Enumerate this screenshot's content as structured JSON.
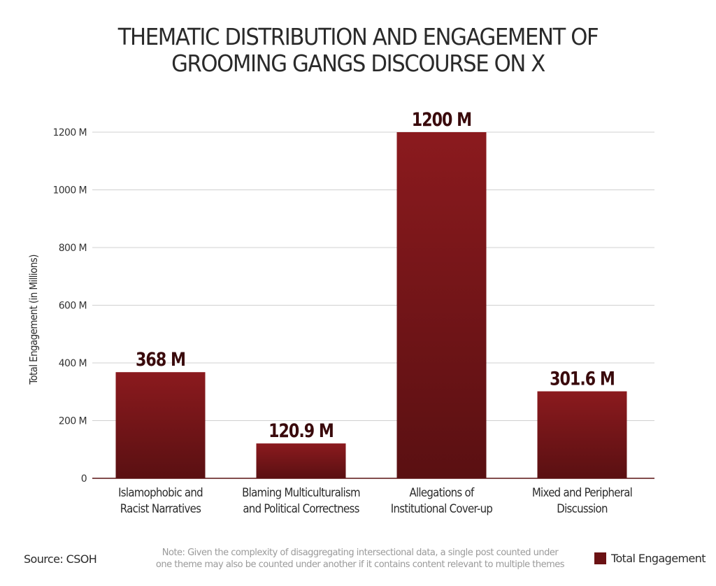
{
  "title_line1": "THEMATIC DISTRIBUTION AND ENGAGEMENT OF",
  "title_line2": "GROOMING GANGS DISCOURSE ON X",
  "source": "Source: CSOH",
  "note_line1": "Note: Given the complexity of disaggregating intersectional data, a single post counted under",
  "note_line2": "one theme may also be counted under another if it contains content relevant to multiple themes",
  "legend_label": "Total Engagement",
  "colors": {
    "bar_top": "#8b1a1e",
    "bar_bottom": "#5a1012",
    "legend": "#6b1214",
    "value_label": "#3a0a0c",
    "grid": "#d0d0d0",
    "axis": "#5a1012"
  },
  "chart_data": {
    "type": "bar",
    "title": "THEMATIC DISTRIBUTION AND ENGAGEMENT OF GROOMING GANGS DISCOURSE ON X",
    "ylabel": "Total Engagement (in Millions)",
    "xlabel": "",
    "ylim": [
      0,
      1200
    ],
    "yticks": [
      0,
      200,
      400,
      600,
      800,
      1000,
      1200
    ],
    "ytick_labels": [
      "0",
      "200 M",
      "400 M",
      "600 M",
      "800 M",
      "1000 M",
      "1200 M"
    ],
    "grid": true,
    "legend_position": "bottom-right",
    "categories": [
      [
        "Islamophobic and",
        "Racist Narratives"
      ],
      [
        "Blaming Multiculturalism",
        "and Political Correctness"
      ],
      [
        "Allegations of",
        "Institutional Cover-up"
      ],
      [
        "Mixed and Peripheral",
        "Discussion"
      ]
    ],
    "values": [
      368,
      120.9,
      1200,
      301.6
    ],
    "value_labels": [
      "368 M",
      "120.9 M",
      "1200 M",
      "301.6 M"
    ],
    "series": [
      {
        "name": "Total Engagement",
        "values": [
          368,
          120.9,
          1200,
          301.6
        ]
      }
    ]
  }
}
